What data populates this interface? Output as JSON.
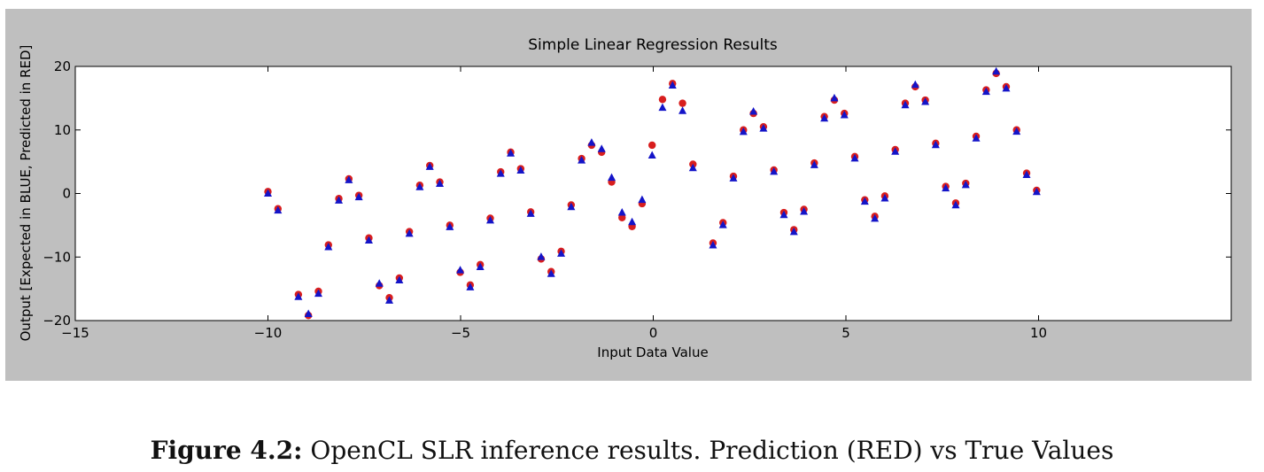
{
  "chart_data": {
    "type": "scatter",
    "title": "Simple Linear Regression Results",
    "x_label": "Input Data Value",
    "y_label": "Output [Expected in BLUE, Predicted in RED]",
    "x": [
      -10,
      -9.74,
      -9.21,
      -8.95,
      -8.69,
      -8.43,
      -8.16,
      -7.9,
      -7.64,
      -7.38,
      -7.11,
      -6.85,
      -6.59,
      -6.33,
      -6.06,
      -5.8,
      -5.54,
      -5.28,
      -5.01,
      -4.75,
      -4.49,
      -4.23,
      -3.96,
      -3.7,
      -3.44,
      -3.18,
      -2.91,
      -2.65,
      -2.39,
      -2.13,
      -1.86,
      -1.6,
      -1.34,
      -1.08,
      -0.81,
      -0.55,
      -0.29,
      -0.03,
      0.24,
      0.5,
      0.76,
      1.03,
      1.55,
      1.81,
      2.08,
      2.34,
      2.6,
      2.86,
      3.13,
      3.39,
      3.65,
      3.91,
      4.18,
      4.44,
      4.7,
      4.96,
      5.23,
      5.49,
      5.75,
      6.01,
      6.28,
      6.54,
      6.8,
      7.06,
      7.33,
      7.59,
      7.85,
      8.11,
      8.38,
      8.64,
      8.9,
      9.16,
      9.43,
      9.69,
      9.95
    ],
    "series": [
      {
        "color": "#d81e1e",
        "marker": "circle",
        "values": [
          0.3,
          -2.4,
          -15.9,
          -19.2,
          -15.4,
          -8.1,
          -0.8,
          2.3,
          -0.3,
          -7.0,
          -14.5,
          -16.4,
          -13.3,
          -6.0,
          1.3,
          4.4,
          1.8,
          -5.0,
          -12.4,
          -14.4,
          -11.2,
          -3.9,
          3.4,
          6.5,
          3.9,
          -2.9,
          -10.3,
          -12.3,
          -9.1,
          -1.8,
          5.5,
          7.6,
          6.5,
          1.8,
          -3.8,
          -5.2,
          -1.6,
          7.6,
          14.8,
          17.3,
          14.2,
          4.6,
          -7.8,
          -4.6,
          2.7,
          10.0,
          12.6,
          10.5,
          3.7,
          -3.0,
          -5.7,
          -2.5,
          4.8,
          12.1,
          14.7,
          12.6,
          5.8,
          -1.0,
          -3.6,
          -0.4,
          6.9,
          14.2,
          16.8,
          14.7,
          7.9,
          1.1,
          -1.5,
          1.6,
          9.0,
          16.3,
          18.9,
          16.8,
          10.0,
          3.2,
          0.5
        ]
      },
      {
        "color": "#1414c8",
        "marker": "triangle",
        "values": [
          0,
          -2.67,
          -16.28,
          -18.95,
          -15.76,
          -8.43,
          -1.09,
          2.1,
          -0.57,
          -7.38,
          -14.18,
          -16.85,
          -13.66,
          -6.33,
          1.01,
          4.2,
          1.53,
          -5.28,
          -12.08,
          -14.75,
          -11.56,
          -4.23,
          3.11,
          6.3,
          3.63,
          -3.18,
          -9.98,
          -12.65,
          -9.46,
          -2.13,
          5.21,
          8.0,
          7.0,
          2.5,
          -3.0,
          -4.5,
          -1.0,
          6.0,
          13.5,
          17.0,
          13.0,
          4.0,
          -8.15,
          -4.96,
          2.38,
          9.71,
          12.9,
          10.23,
          3.43,
          -3.38,
          -6.05,
          -2.86,
          4.48,
          11.81,
          15.0,
          12.33,
          5.53,
          -1.28,
          -3.95,
          -0.76,
          6.58,
          13.91,
          17.1,
          14.43,
          7.63,
          0.82,
          -1.85,
          1.34,
          8.68,
          16.01,
          19.2,
          16.53,
          9.73,
          2.92,
          0.25
        ]
      }
    ],
    "xlim": [
      -15,
      15
    ],
    "ylim": [
      -20,
      20
    ],
    "xticks": [
      {
        "value": -15,
        "label": "−15"
      },
      {
        "value": -10,
        "label": "−10"
      },
      {
        "value": -5,
        "label": "−5"
      },
      0,
      5,
      10
    ],
    "yticks": [
      {
        "value": -20,
        "label": "−20"
      },
      {
        "value": -10,
        "label": "−10"
      },
      0,
      10,
      20
    ],
    "grid": false
  },
  "caption": {
    "label": "Figure 4.2:",
    "text": " OpenCL SLR inference results. Prediction (RED) vs True Values"
  }
}
